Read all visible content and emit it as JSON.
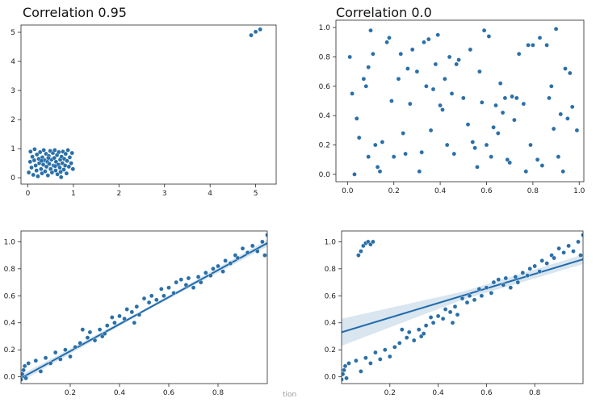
{
  "caption_fragment": "tion",
  "colors": {
    "point": "#2a6fa8",
    "line": "#1f6bac",
    "band": "#2a6fa8"
  },
  "chart_data": [
    {
      "id": "p1",
      "type": "scatter",
      "title": "Correlation 0.95",
      "xlim": [
        -0.15,
        5.45
      ],
      "ylim": [
        -0.22,
        5.25
      ],
      "xticks": [
        0,
        1,
        2,
        3,
        4,
        5
      ],
      "yticks": [
        0,
        1,
        2,
        3,
        4,
        5
      ],
      "xticklabels": [
        "0",
        "1",
        "2",
        "3",
        "4",
        "5"
      ],
      "yticklabels": [
        "0",
        "1",
        "2",
        "3",
        "4",
        "5"
      ],
      "points": [
        [
          0.02,
          0.18
        ],
        [
          0.05,
          0.55
        ],
        [
          0.06,
          0.9
        ],
        [
          0.08,
          0.35
        ],
        [
          0.1,
          0.72
        ],
        [
          0.12,
          0.1
        ],
        [
          0.14,
          0.6
        ],
        [
          0.15,
          0.98
        ],
        [
          0.17,
          0.42
        ],
        [
          0.19,
          0.25
        ],
        [
          0.2,
          0.8
        ],
        [
          0.22,
          0.05
        ],
        [
          0.24,
          0.65
        ],
        [
          0.25,
          0.5
        ],
        [
          0.27,
          0.88
        ],
        [
          0.29,
          0.3
        ],
        [
          0.31,
          0.15
        ],
        [
          0.32,
          0.7
        ],
        [
          0.34,
          0.45
        ],
        [
          0.35,
          0.95
        ],
        [
          0.37,
          0.6
        ],
        [
          0.38,
          0.22
        ],
        [
          0.4,
          0.82
        ],
        [
          0.41,
          0.38
        ],
        [
          0.43,
          0.55
        ],
        [
          0.44,
          0.08
        ],
        [
          0.46,
          0.75
        ],
        [
          0.47,
          0.48
        ],
        [
          0.49,
          0.92
        ],
        [
          0.5,
          0.3
        ],
        [
          0.52,
          0.62
        ],
        [
          0.53,
          0.18
        ],
        [
          0.55,
          0.85
        ],
        [
          0.56,
          0.42
        ],
        [
          0.58,
          0.68
        ],
        [
          0.59,
          0.95
        ],
        [
          0.61,
          0.25
        ],
        [
          0.62,
          0.55
        ],
        [
          0.64,
          0.78
        ],
        [
          0.65,
          0.12
        ],
        [
          0.67,
          0.45
        ],
        [
          0.68,
          0.88
        ],
        [
          0.7,
          0.35
        ],
        [
          0.71,
          0.62
        ],
        [
          0.73,
          0.02
        ],
        [
          0.74,
          0.72
        ],
        [
          0.76,
          0.5
        ],
        [
          0.77,
          0.9
        ],
        [
          0.79,
          0.28
        ],
        [
          0.8,
          0.65
        ],
        [
          0.82,
          0.42
        ],
        [
          0.83,
          0.82
        ],
        [
          0.85,
          0.15
        ],
        [
          0.86,
          0.58
        ],
        [
          0.88,
          0.95
        ],
        [
          0.9,
          0.38
        ],
        [
          0.92,
          0.7
        ],
        [
          0.95,
          0.5
        ],
        [
          0.97,
          0.85
        ],
        [
          0.99,
          0.3
        ],
        [
          0.3,
          0.58
        ],
        [
          0.6,
          0.4
        ],
        [
          0.45,
          0.68
        ],
        [
          0.72,
          0.2
        ],
        [
          4.9,
          4.9
        ],
        [
          5.0,
          5.02
        ],
        [
          5.1,
          5.1
        ]
      ]
    },
    {
      "id": "p2",
      "type": "scatter",
      "title": "Correlation 0.0",
      "xlim": [
        -0.05,
        1.02
      ],
      "ylim": [
        -0.05,
        1.05
      ],
      "xticks": [
        0,
        0.2,
        0.4,
        0.6,
        0.8,
        1.0
      ],
      "yticks": [
        0,
        0.2,
        0.4,
        0.6,
        0.8,
        1.0
      ],
      "xticklabels": [
        "0.0",
        "0.2",
        "0.4",
        "0.6",
        "0.8",
        "1.0"
      ],
      "yticklabels": [
        "0.0",
        "0.2",
        "0.4",
        "0.6",
        "0.8",
        "1.0"
      ],
      "points": [
        [
          0.01,
          0.8
        ],
        [
          0.02,
          0.55
        ],
        [
          0.03,
          0.0
        ],
        [
          0.04,
          0.38
        ],
        [
          0.05,
          0.25
        ],
        [
          0.07,
          0.65
        ],
        [
          0.08,
          0.6
        ],
        [
          0.09,
          0.12
        ],
        [
          0.1,
          0.98
        ],
        [
          0.11,
          0.82
        ],
        [
          0.12,
          0.2
        ],
        [
          0.13,
          0.05
        ],
        [
          0.14,
          0.02
        ],
        [
          0.17,
          0.9
        ],
        [
          0.18,
          0.93
        ],
        [
          0.19,
          0.5
        ],
        [
          0.2,
          0.12
        ],
        [
          0.22,
          0.65
        ],
        [
          0.23,
          0.82
        ],
        [
          0.24,
          0.28
        ],
        [
          0.25,
          0.14
        ],
        [
          0.26,
          0.72
        ],
        [
          0.27,
          0.48
        ],
        [
          0.28,
          0.85
        ],
        [
          0.3,
          0.7
        ],
        [
          0.31,
          0.02
        ],
        [
          0.32,
          0.15
        ],
        [
          0.33,
          0.9
        ],
        [
          0.34,
          0.6
        ],
        [
          0.35,
          0.92
        ],
        [
          0.37,
          0.58
        ],
        [
          0.38,
          0.75
        ],
        [
          0.39,
          0.95
        ],
        [
          0.4,
          0.47
        ],
        [
          0.41,
          0.44
        ],
        [
          0.42,
          0.65
        ],
        [
          0.43,
          0.2
        ],
        [
          0.44,
          0.8
        ],
        [
          0.45,
          0.55
        ],
        [
          0.47,
          0.75
        ],
        [
          0.48,
          0.78
        ],
        [
          0.5,
          0.52
        ],
        [
          0.52,
          0.34
        ],
        [
          0.53,
          0.85
        ],
        [
          0.54,
          0.22
        ],
        [
          0.55,
          0.18
        ],
        [
          0.56,
          0.05
        ],
        [
          0.57,
          0.7
        ],
        [
          0.58,
          0.49
        ],
        [
          0.59,
          0.98
        ],
        [
          0.6,
          0.2
        ],
        [
          0.61,
          0.94
        ],
        [
          0.62,
          0.12
        ],
        [
          0.63,
          0.32
        ],
        [
          0.64,
          0.47
        ],
        [
          0.65,
          0.28
        ],
        [
          0.66,
          0.62
        ],
        [
          0.67,
          0.42
        ],
        [
          0.68,
          0.52
        ],
        [
          0.69,
          0.1
        ],
        [
          0.7,
          0.08
        ],
        [
          0.72,
          0.37
        ],
        [
          0.73,
          0.52
        ],
        [
          0.74,
          0.82
        ],
        [
          0.76,
          0.48
        ],
        [
          0.77,
          0.02
        ],
        [
          0.78,
          0.88
        ],
        [
          0.79,
          0.2
        ],
        [
          0.8,
          0.88
        ],
        [
          0.82,
          0.1
        ],
        [
          0.83,
          0.93
        ],
        [
          0.84,
          0.06
        ],
        [
          0.86,
          0.88
        ],
        [
          0.87,
          0.52
        ],
        [
          0.88,
          0.6
        ],
        [
          0.89,
          0.31
        ],
        [
          0.9,
          0.99
        ],
        [
          0.91,
          0.12
        ],
        [
          0.92,
          0.41
        ],
        [
          0.93,
          0.02
        ],
        [
          0.94,
          0.72
        ],
        [
          0.95,
          0.38
        ],
        [
          0.96,
          0.69
        ],
        [
          0.97,
          0.46
        ],
        [
          0.99,
          0.3
        ],
        [
          0.15,
          0.22
        ],
        [
          0.46,
          0.14
        ],
        [
          0.36,
          0.3
        ],
        [
          0.71,
          0.53
        ],
        [
          0.09,
          0.73
        ]
      ]
    },
    {
      "id": "p3",
      "type": "scatter",
      "xlim": [
        0.0,
        1.0
      ],
      "ylim": [
        -0.05,
        1.08
      ],
      "xticks": [
        0.2,
        0.4,
        0.6,
        0.8
      ],
      "yticks": [
        0,
        0.2,
        0.4,
        0.6,
        0.8,
        1.0
      ],
      "xticklabels": [
        "0.2",
        "0.4",
        "0.6",
        "0.8"
      ],
      "yticklabels": [
        "0.0",
        "0.2",
        "0.4",
        "0.6",
        "0.8",
        "1.0"
      ],
      "regression": {
        "intercept": -0.01,
        "slope": 1.0,
        "band": [
          0.025,
          0.01,
          0.025
        ]
      },
      "points": [
        [
          0.0,
          -0.02
        ],
        [
          0.005,
          0.02
        ],
        [
          0.01,
          0.05
        ],
        [
          0.015,
          0.08
        ],
        [
          0.02,
          -0.01
        ],
        [
          0.03,
          0.1
        ],
        [
          0.06,
          0.12
        ],
        [
          0.08,
          0.04
        ],
        [
          0.1,
          0.14
        ],
        [
          0.12,
          0.1
        ],
        [
          0.14,
          0.18
        ],
        [
          0.16,
          0.13
        ],
        [
          0.18,
          0.2
        ],
        [
          0.2,
          0.15
        ],
        [
          0.22,
          0.22
        ],
        [
          0.24,
          0.25
        ],
        [
          0.25,
          0.35
        ],
        [
          0.27,
          0.29
        ],
        [
          0.28,
          0.33
        ],
        [
          0.3,
          0.27
        ],
        [
          0.32,
          0.35
        ],
        [
          0.33,
          0.3
        ],
        [
          0.35,
          0.38
        ],
        [
          0.37,
          0.44
        ],
        [
          0.38,
          0.4
        ],
        [
          0.4,
          0.45
        ],
        [
          0.42,
          0.43
        ],
        [
          0.43,
          0.5
        ],
        [
          0.45,
          0.48
        ],
        [
          0.47,
          0.52
        ],
        [
          0.48,
          0.46
        ],
        [
          0.5,
          0.58
        ],
        [
          0.52,
          0.55
        ],
        [
          0.53,
          0.6
        ],
        [
          0.55,
          0.57
        ],
        [
          0.57,
          0.65
        ],
        [
          0.58,
          0.6
        ],
        [
          0.6,
          0.66
        ],
        [
          0.62,
          0.62
        ],
        [
          0.63,
          0.7
        ],
        [
          0.65,
          0.72
        ],
        [
          0.67,
          0.68
        ],
        [
          0.68,
          0.73
        ],
        [
          0.7,
          0.66
        ],
        [
          0.72,
          0.74
        ],
        [
          0.73,
          0.7
        ],
        [
          0.75,
          0.77
        ],
        [
          0.77,
          0.75
        ],
        [
          0.78,
          0.8
        ],
        [
          0.8,
          0.82
        ],
        [
          0.82,
          0.78
        ],
        [
          0.83,
          0.86
        ],
        [
          0.85,
          0.84
        ],
        [
          0.87,
          0.9
        ],
        [
          0.88,
          0.88
        ],
        [
          0.9,
          0.95
        ],
        [
          0.92,
          0.92
        ],
        [
          0.94,
          0.97
        ],
        [
          0.96,
          0.93
        ],
        [
          0.98,
          1.0
        ],
        [
          0.99,
          0.9
        ],
        [
          1.0,
          1.05
        ],
        [
          0.46,
          0.4
        ],
        [
          0.34,
          0.32
        ]
      ]
    },
    {
      "id": "p4",
      "type": "scatter",
      "xlim": [
        0.0,
        1.0
      ],
      "ylim": [
        -0.05,
        1.08
      ],
      "xticks": [
        0.2,
        0.4,
        0.6,
        0.8
      ],
      "yticks": [
        0,
        0.2,
        0.4,
        0.6,
        0.8,
        1.0
      ],
      "xticklabels": [
        "0.2",
        "0.4",
        "0.6",
        "0.8"
      ],
      "yticklabels": [
        "0.0",
        "0.2",
        "0.4",
        "0.6",
        "0.8",
        "1.0"
      ],
      "regression": {
        "intercept": 0.33,
        "slope": 0.54,
        "band": [
          0.1,
          0.03,
          0.035
        ]
      },
      "points": [
        [
          0.0,
          -0.02
        ],
        [
          0.005,
          0.02
        ],
        [
          0.01,
          0.05
        ],
        [
          0.015,
          0.08
        ],
        [
          0.02,
          -0.01
        ],
        [
          0.03,
          0.1
        ],
        [
          0.06,
          0.12
        ],
        [
          0.08,
          0.04
        ],
        [
          0.1,
          0.14
        ],
        [
          0.12,
          0.1
        ],
        [
          0.14,
          0.18
        ],
        [
          0.16,
          0.13
        ],
        [
          0.18,
          0.2
        ],
        [
          0.2,
          0.15
        ],
        [
          0.22,
          0.22
        ],
        [
          0.24,
          0.25
        ],
        [
          0.25,
          0.35
        ],
        [
          0.27,
          0.29
        ],
        [
          0.28,
          0.33
        ],
        [
          0.3,
          0.27
        ],
        [
          0.32,
          0.35
        ],
        [
          0.33,
          0.3
        ],
        [
          0.35,
          0.38
        ],
        [
          0.37,
          0.44
        ],
        [
          0.38,
          0.4
        ],
        [
          0.4,
          0.45
        ],
        [
          0.42,
          0.43
        ],
        [
          0.43,
          0.5
        ],
        [
          0.45,
          0.48
        ],
        [
          0.47,
          0.52
        ],
        [
          0.48,
          0.46
        ],
        [
          0.5,
          0.58
        ],
        [
          0.52,
          0.55
        ],
        [
          0.53,
          0.6
        ],
        [
          0.55,
          0.57
        ],
        [
          0.57,
          0.65
        ],
        [
          0.58,
          0.6
        ],
        [
          0.6,
          0.66
        ],
        [
          0.62,
          0.62
        ],
        [
          0.63,
          0.7
        ],
        [
          0.65,
          0.72
        ],
        [
          0.67,
          0.68
        ],
        [
          0.68,
          0.73
        ],
        [
          0.7,
          0.66
        ],
        [
          0.72,
          0.74
        ],
        [
          0.73,
          0.7
        ],
        [
          0.75,
          0.77
        ],
        [
          0.77,
          0.75
        ],
        [
          0.78,
          0.8
        ],
        [
          0.8,
          0.82
        ],
        [
          0.82,
          0.78
        ],
        [
          0.83,
          0.86
        ],
        [
          0.85,
          0.84
        ],
        [
          0.87,
          0.9
        ],
        [
          0.88,
          0.88
        ],
        [
          0.9,
          0.95
        ],
        [
          0.92,
          0.92
        ],
        [
          0.94,
          0.97
        ],
        [
          0.96,
          0.93
        ],
        [
          0.98,
          1.0
        ],
        [
          0.99,
          0.9
        ],
        [
          1.0,
          1.05
        ],
        [
          0.46,
          0.4
        ],
        [
          0.34,
          0.32
        ],
        [
          0.07,
          0.9
        ],
        [
          0.08,
          0.93
        ],
        [
          0.09,
          0.97
        ],
        [
          0.1,
          0.99
        ],
        [
          0.11,
          1.0
        ],
        [
          0.12,
          0.98
        ],
        [
          0.13,
          1.0
        ]
      ]
    }
  ]
}
